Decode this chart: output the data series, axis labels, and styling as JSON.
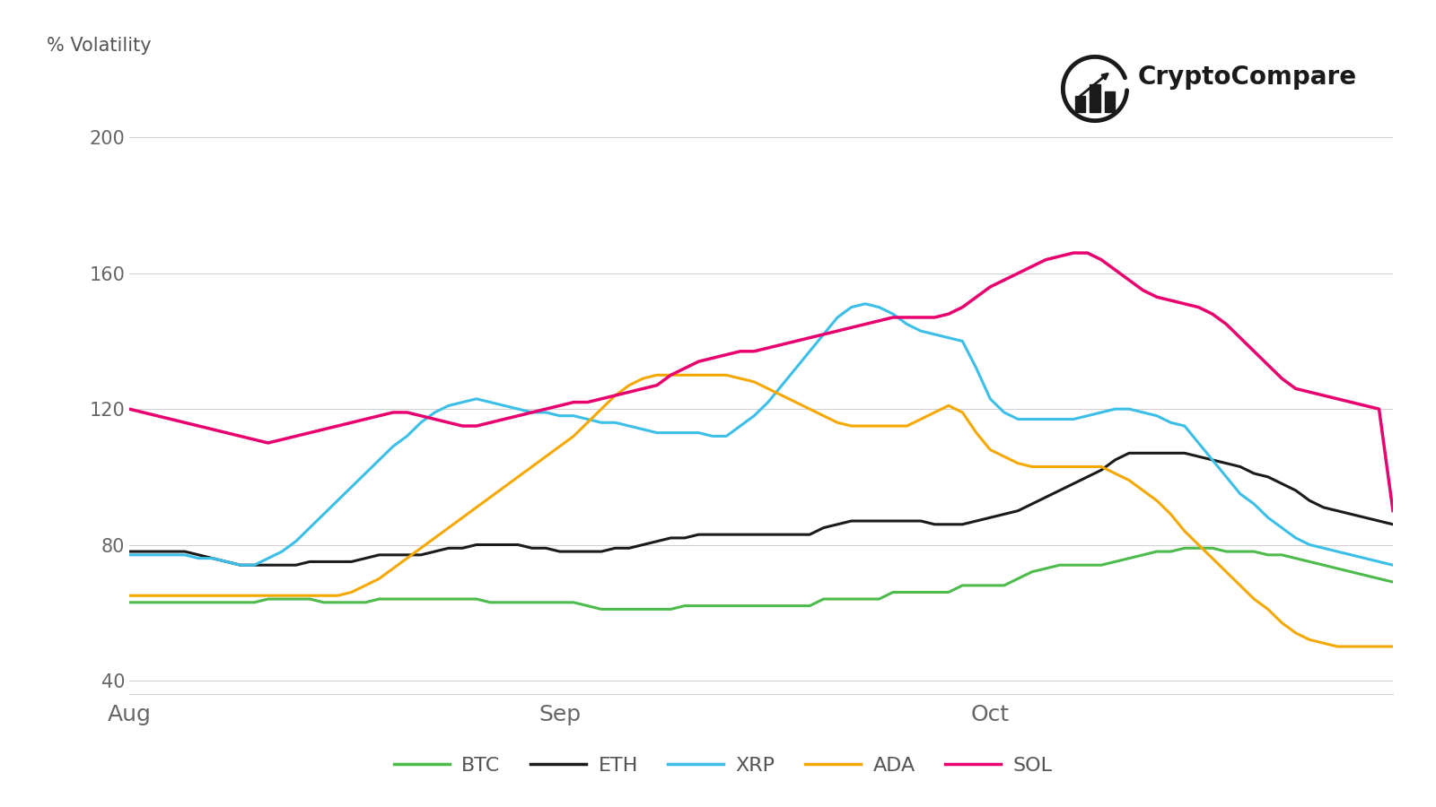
{
  "ylabel": "% Volatility",
  "yticks": [
    40,
    80,
    120,
    160,
    200
  ],
  "xtick_labels": [
    "Aug",
    "Sep",
    "Oct"
  ],
  "xtick_positions": [
    0,
    31,
    62
  ],
  "ylim": [
    36,
    212
  ],
  "xlim": [
    0,
    91
  ],
  "background_color": "#ffffff",
  "grid_color": "#d0d0d0",
  "colors": {
    "BTC": "#4cbb4c",
    "ETH": "#1a1a1a",
    "XRP": "#3bbfe8",
    "ADA": "#f5a800",
    "SOL": "#e8006e"
  },
  "brand_text": "CryptoCompare",
  "linewidth": 2.2,
  "BTC": [
    63,
    63,
    63,
    63,
    63,
    63,
    63,
    63,
    63,
    63,
    64,
    64,
    64,
    64,
    63,
    63,
    63,
    63,
    64,
    64,
    64,
    64,
    64,
    64,
    64,
    64,
    63,
    63,
    63,
    63,
    63,
    63,
    63,
    62,
    61,
    61,
    61,
    61,
    61,
    61,
    62,
    62,
    62,
    62,
    62,
    62,
    62,
    62,
    62,
    62,
    64,
    64,
    64,
    64,
    64,
    66,
    66,
    66,
    66,
    66,
    68,
    68,
    68,
    68,
    70,
    72,
    73,
    74,
    74,
    74,
    74,
    75,
    76,
    77,
    78,
    78,
    79,
    79,
    79,
    78,
    78,
    78,
    77,
    77,
    76,
    75,
    74,
    73,
    72,
    71,
    70,
    69
  ],
  "ETH": [
    78,
    78,
    78,
    78,
    78,
    77,
    76,
    75,
    74,
    74,
    74,
    74,
    74,
    75,
    75,
    75,
    75,
    76,
    77,
    77,
    77,
    77,
    78,
    79,
    79,
    80,
    80,
    80,
    80,
    79,
    79,
    78,
    78,
    78,
    78,
    79,
    79,
    80,
    81,
    82,
    82,
    83,
    83,
    83,
    83,
    83,
    83,
    83,
    83,
    83,
    85,
    86,
    87,
    87,
    87,
    87,
    87,
    87,
    86,
    86,
    86,
    87,
    88,
    89,
    90,
    92,
    94,
    96,
    98,
    100,
    102,
    105,
    107,
    107,
    107,
    107,
    107,
    106,
    105,
    104,
    103,
    101,
    100,
    98,
    96,
    93,
    91,
    90,
    89,
    88,
    87,
    86
  ],
  "XRP": [
    77,
    77,
    77,
    77,
    77,
    76,
    76,
    75,
    74,
    74,
    76,
    78,
    81,
    85,
    89,
    93,
    97,
    101,
    105,
    109,
    112,
    116,
    119,
    121,
    122,
    123,
    122,
    121,
    120,
    119,
    119,
    118,
    118,
    117,
    116,
    116,
    115,
    114,
    113,
    113,
    113,
    113,
    112,
    112,
    115,
    118,
    122,
    127,
    132,
    137,
    142,
    147,
    150,
    151,
    150,
    148,
    145,
    143,
    142,
    141,
    140,
    132,
    123,
    119,
    117,
    117,
    117,
    117,
    117,
    118,
    119,
    120,
    120,
    119,
    118,
    116,
    115,
    110,
    105,
    100,
    95,
    92,
    88,
    85,
    82,
    80,
    79,
    78,
    77,
    76,
    75,
    74
  ],
  "ADA": [
    65,
    65,
    65,
    65,
    65,
    65,
    65,
    65,
    65,
    65,
    65,
    65,
    65,
    65,
    65,
    65,
    66,
    68,
    70,
    73,
    76,
    79,
    82,
    85,
    88,
    91,
    94,
    97,
    100,
    103,
    106,
    109,
    112,
    116,
    120,
    124,
    127,
    129,
    130,
    130,
    130,
    130,
    130,
    130,
    129,
    128,
    126,
    124,
    122,
    120,
    118,
    116,
    115,
    115,
    115,
    115,
    115,
    117,
    119,
    121,
    119,
    113,
    108,
    106,
    104,
    103,
    103,
    103,
    103,
    103,
    103,
    101,
    99,
    96,
    93,
    89,
    84,
    80,
    76,
    72,
    68,
    64,
    61,
    57,
    54,
    52,
    51,
    50,
    50,
    50,
    50,
    50
  ],
  "SOL": [
    120,
    119,
    118,
    117,
    116,
    115,
    114,
    113,
    112,
    111,
    110,
    111,
    112,
    113,
    114,
    115,
    116,
    117,
    118,
    119,
    119,
    118,
    117,
    116,
    115,
    115,
    116,
    117,
    118,
    119,
    120,
    121,
    122,
    122,
    123,
    124,
    125,
    126,
    127,
    130,
    132,
    134,
    135,
    136,
    137,
    137,
    138,
    139,
    140,
    141,
    142,
    143,
    144,
    145,
    146,
    147,
    147,
    147,
    147,
    148,
    150,
    153,
    156,
    158,
    160,
    162,
    164,
    165,
    166,
    166,
    164,
    161,
    158,
    155,
    153,
    152,
    151,
    150,
    148,
    145,
    141,
    137,
    133,
    129,
    126,
    125,
    124,
    123,
    122,
    121,
    120,
    90
  ]
}
